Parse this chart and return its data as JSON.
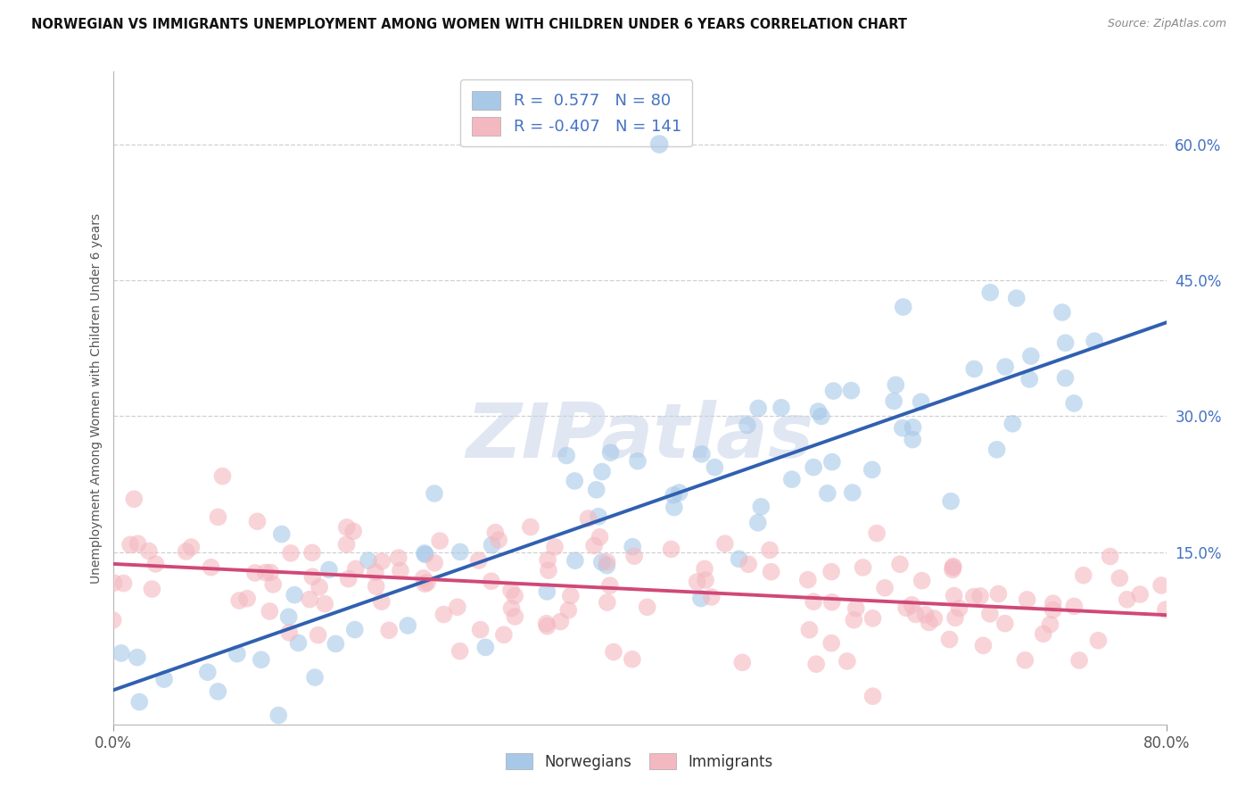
{
  "title": "NORWEGIAN VS IMMIGRANTS UNEMPLOYMENT AMONG WOMEN WITH CHILDREN UNDER 6 YEARS CORRELATION CHART",
  "source": "Source: ZipAtlas.com",
  "ylabel": "Unemployment Among Women with Children Under 6 years",
  "norwegian_R": 0.577,
  "norwegian_N": 80,
  "immigrant_R": -0.407,
  "immigrant_N": 141,
  "norwegian_color": "#a8c8e8",
  "immigrant_color": "#f4b8c0",
  "norwegian_line_color": "#3060b0",
  "immigrant_line_color": "#d04878",
  "background_color": "#ffffff",
  "watermark": "ZIPatlas",
  "xlim": [
    0.0,
    0.8
  ],
  "ylim": [
    -0.04,
    0.68
  ],
  "right_yticks": [
    0.15,
    0.3,
    0.45,
    0.6
  ],
  "right_yticklabels": [
    "15.0%",
    "30.0%",
    "45.0%",
    "60.0%"
  ],
  "xtick_labels": [
    "0.0%",
    "80.0%"
  ],
  "xtick_vals": [
    0.0,
    0.8
  ],
  "legend_nor_text": "R =  0.577   N = 80",
  "legend_imm_text": "R = -0.407   N = 141",
  "legend_nor_label": "Norwegians",
  "legend_imm_label": "Immigrants"
}
